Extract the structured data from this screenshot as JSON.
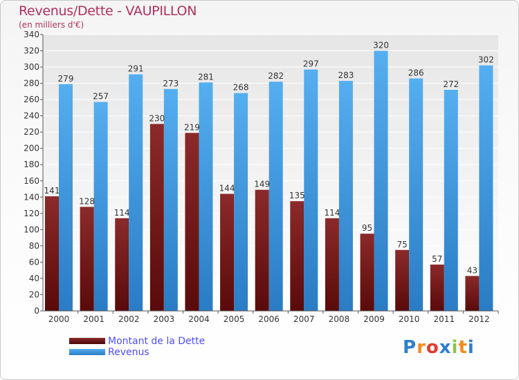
{
  "chart_data": {
    "type": "bar",
    "title": "Revenus/Dette - VAUPILLON",
    "subtitle": "(en milliers d'€)",
    "categories": [
      "2000",
      "2001",
      "2002",
      "2003",
      "2004",
      "2005",
      "2006",
      "2007",
      "2008",
      "2009",
      "2010",
      "2011",
      "2012"
    ],
    "series": [
      {
        "name": "Montant de la Dette",
        "color": "#7a1c1c",
        "values": [
          141,
          128,
          114,
          230,
          219,
          144,
          149,
          135,
          114,
          95,
          75,
          57,
          43
        ]
      },
      {
        "name": "Revenus",
        "color": "#3c97dc",
        "values": [
          279,
          257,
          291,
          273,
          281,
          268,
          282,
          297,
          283,
          320,
          286,
          272,
          302
        ]
      }
    ],
    "ylim": [
      0,
      340
    ],
    "yticks": [
      0,
      20,
      40,
      60,
      80,
      100,
      120,
      140,
      160,
      180,
      200,
      220,
      240,
      260,
      280,
      300,
      320,
      340
    ],
    "grid": true,
    "legend": "bottom-left"
  },
  "brand": {
    "text": "Proxiti",
    "letters": [
      {
        "ch": "P",
        "color": "#2b7fd1"
      },
      {
        "ch": "r",
        "color": "#f28c1e"
      },
      {
        "ch": "o",
        "color": "#e23a2e"
      },
      {
        "ch": "x",
        "color": "#2b7fd1"
      },
      {
        "ch": "i",
        "color": "#8cc63f"
      },
      {
        "ch": "t",
        "color": "#f28c1e"
      },
      {
        "ch": "i",
        "color": "#2b7fd1"
      }
    ]
  }
}
